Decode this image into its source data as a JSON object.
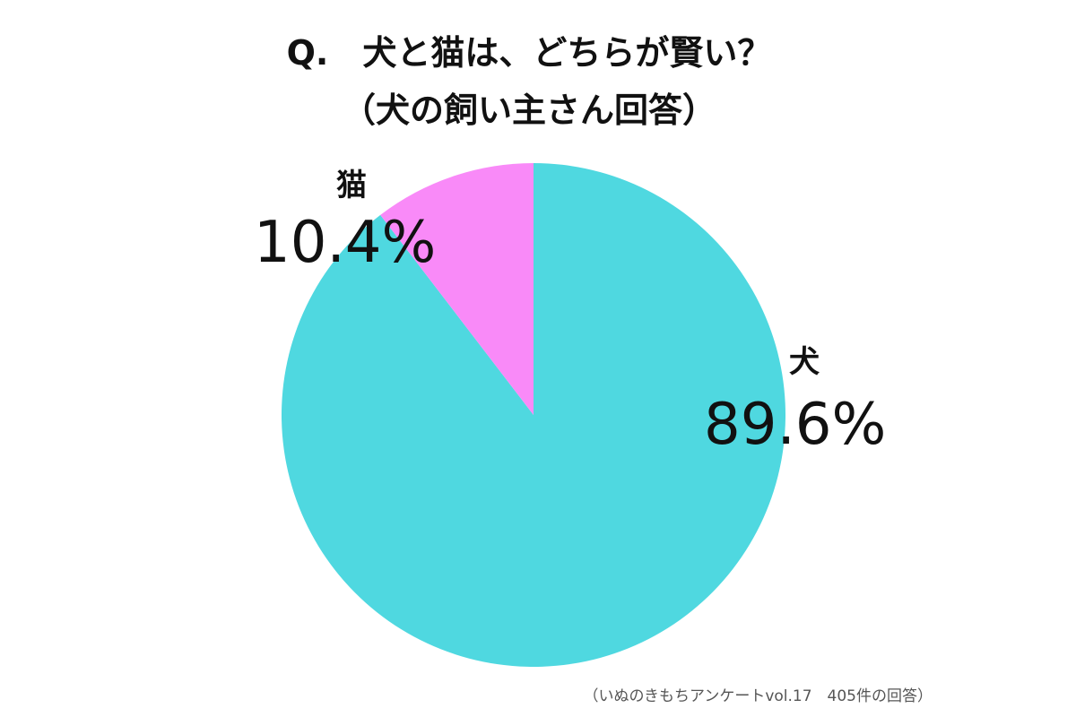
{
  "chart_data": {
    "type": "pie",
    "title": "Q.　犬と猫は、どちらが賢い？",
    "subtitle": "（犬の飼い主さん回答）",
    "note": "（いぬのきもちアンケートvol.17　405件の回答）",
    "categories": [
      "犬",
      "猫"
    ],
    "values": [
      89.6,
      10.4
    ],
    "value_labels": [
      "89.6%",
      "10.4%"
    ],
    "colors": [
      "#4fd8e0",
      "#f98af8"
    ]
  }
}
